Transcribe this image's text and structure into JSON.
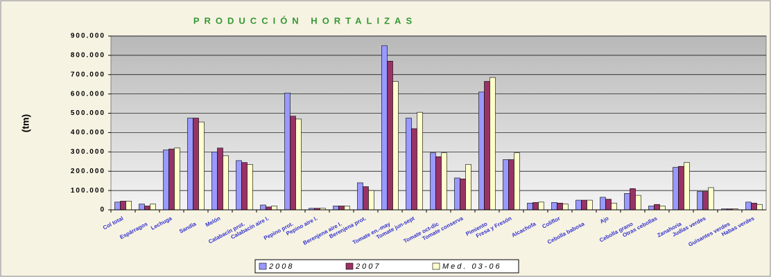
{
  "chart_data": {
    "type": "bar",
    "title": "PRODUCCIÓN HORTALIZAS",
    "y_label": "(tm)",
    "categories": [
      "Col total",
      "Espárragos",
      "Lechuga",
      "Sandía",
      "Melón",
      "Calabacín prot.",
      "Calabacín aire l.",
      "Pepino prot.",
      "Pepino aire l.",
      "Berenjena aire l.",
      "Berenjena prot.",
      "Tomate en.-may",
      "Tomate jun-sept",
      "Tomate oct-dic",
      "Tomate conserva",
      "Pimiento",
      "Fresa y Fresón",
      "Alcachofa",
      "Coliflor",
      "Cebolla babosa",
      "Ajo",
      "Cebolla grano",
      "Otras cebollas",
      "Zanahoria",
      "Judías verdes",
      "Guisantes verdes",
      "Habas verdes"
    ],
    "series": [
      {
        "name": "2008",
        "color": "#9999ff",
        "values": [
          40000,
          30000,
          310000,
          475000,
          300000,
          255000,
          25000,
          605000,
          8000,
          20000,
          140000,
          850000,
          475000,
          295000,
          165000,
          610000,
          260000,
          35000,
          38000,
          50000,
          65000,
          85000,
          20000,
          220000,
          95000,
          5000,
          40000
        ]
      },
      {
        "name": "2007",
        "color": "#993366",
        "values": [
          45000,
          20000,
          315000,
          475000,
          320000,
          245000,
          15000,
          485000,
          8000,
          20000,
          120000,
          770000,
          420000,
          275000,
          160000,
          665000,
          260000,
          38000,
          35000,
          50000,
          55000,
          110000,
          28000,
          225000,
          95000,
          5000,
          35000
        ]
      },
      {
        "name": "Med. 03-06",
        "color": "#ffffcc",
        "values": [
          45000,
          30000,
          320000,
          455000,
          280000,
          235000,
          20000,
          470000,
          8000,
          20000,
          100000,
          665000,
          505000,
          295000,
          235000,
          685000,
          295000,
          40000,
          30000,
          50000,
          35000,
          75000,
          20000,
          245000,
          115000,
          5000,
          28000
        ]
      }
    ],
    "ylim": [
      0,
      900000
    ],
    "yticks": [
      0,
      {
        "value": 100000,
        "label": "100.000"
      },
      {
        "value": 200000,
        "label": "200.000"
      },
      {
        "value": 300000,
        "label": "300.000"
      },
      {
        "value": 400000,
        "label": "400.000"
      },
      {
        "value": 500000,
        "label": "500.000"
      },
      {
        "value": 600000,
        "label": "600.000"
      },
      {
        "value": 700000,
        "label": "700.000"
      },
      {
        "value": 800000,
        "label": "800.000"
      },
      {
        "value": 900000,
        "label": "900.000"
      }
    ],
    "grid": true
  }
}
